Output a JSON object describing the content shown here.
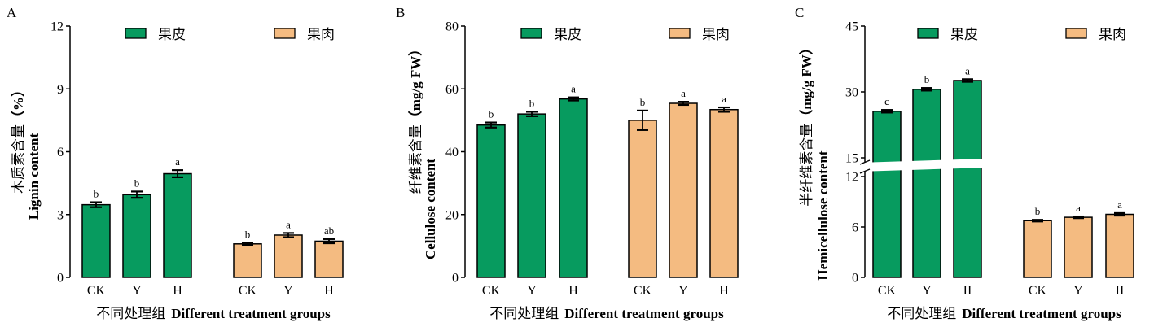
{
  "chart_data": [
    {
      "type": "bar",
      "panel_label": "A",
      "ylabel_zh": "木质素含量",
      "ylabel_unit": "（%）",
      "ylabel_en": "Lignin content",
      "xlabel_zh": "不同处理组",
      "xlabel_en": "Different treatment groups",
      "ylim": [
        0,
        12
      ],
      "yticks": [
        0,
        3,
        6,
        9,
        12
      ],
      "grid": false,
      "legend": "top",
      "categories": [
        "CK",
        "Y",
        "H"
      ],
      "series": [
        {
          "name": "果皮",
          "color": "#079b5f",
          "values": [
            3.47,
            3.95,
            4.95
          ],
          "errors": [
            0.12,
            0.15,
            0.17
          ],
          "letters": [
            "b",
            "b",
            "a"
          ]
        },
        {
          "name": "果肉",
          "color": "#f4bb81",
          "values": [
            1.6,
            2.02,
            1.73
          ],
          "errors": [
            0.06,
            0.1,
            0.1
          ],
          "letters": [
            "b",
            "a",
            "ab"
          ]
        }
      ]
    },
    {
      "type": "bar",
      "panel_label": "B",
      "ylabel_zh": "纤维素含量",
      "ylabel_unit": "（mg/g FW）",
      "ylabel_en": "Cellulose content",
      "xlabel_zh": "不同处理组",
      "xlabel_en": "Different treatment groups",
      "ylim": [
        0,
        80
      ],
      "yticks": [
        0,
        20,
        40,
        60,
        80
      ],
      "grid": false,
      "legend": "top",
      "categories": [
        "CK",
        "Y",
        "H"
      ],
      "series": [
        {
          "name": "果皮",
          "color": "#079b5f",
          "values": [
            48.5,
            52.0,
            56.8
          ],
          "errors": [
            0.8,
            0.7,
            0.5
          ],
          "letters": [
            "b",
            "b",
            "a"
          ]
        },
        {
          "name": "果肉",
          "color": "#f4bb81",
          "values": [
            50.0,
            55.4,
            53.4
          ],
          "errors": [
            3.1,
            0.5,
            0.7
          ],
          "letters": [
            "b",
            "a",
            "a"
          ]
        }
      ]
    },
    {
      "type": "bar",
      "panel_label": "C",
      "ylabel_zh": "半纤维素含量",
      "ylabel_unit": "（mg/g FW）",
      "ylabel_en": "Hemicellulose content",
      "xlabel_zh": "不同处理组",
      "xlabel_en": "Different treatment groups",
      "ylim": [
        0,
        45
      ],
      "axis_break": [
        12,
        15
      ],
      "yticks": [
        0,
        6,
        12,
        15,
        30,
        45
      ],
      "grid": false,
      "legend": "top",
      "categories": [
        "CK",
        "Y",
        "II"
      ],
      "series": [
        {
          "name": "果皮",
          "color": "#079b5f",
          "values": [
            25.6,
            30.6,
            32.6
          ],
          "errors": [
            0.3,
            0.3,
            0.3
          ],
          "letters": [
            "c",
            "b",
            "a"
          ]
        },
        {
          "name": "果肉",
          "color": "#f4bb81",
          "values": [
            6.75,
            7.15,
            7.5
          ],
          "errors": [
            0.1,
            0.1,
            0.15
          ],
          "letters": [
            "b",
            "a",
            "a"
          ]
        }
      ]
    }
  ]
}
